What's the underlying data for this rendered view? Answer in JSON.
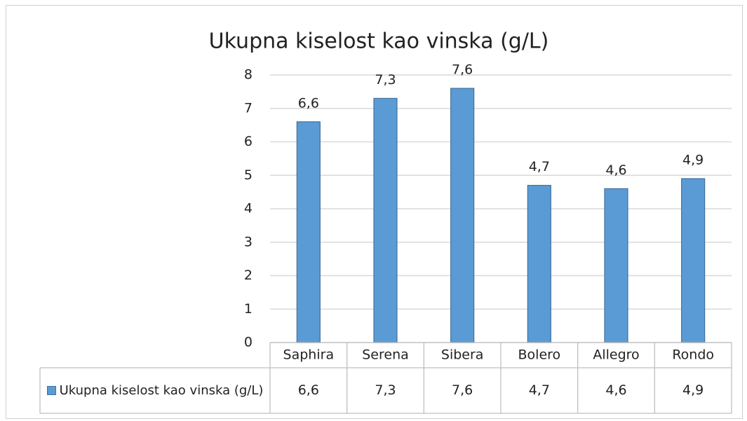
{
  "chart_data": {
    "type": "bar",
    "title": "Ukupna kiselost kao vinska (g/L)",
    "categories": [
      "Saphira",
      "Serena",
      "Sibera",
      "Bolero",
      "Allegro",
      "Rondo"
    ],
    "series": [
      {
        "name": "Ukupna kiselost kao vinska (g/L)",
        "color": "#5b9bd5",
        "values": [
          6.6,
          7.3,
          7.6,
          4.7,
          4.6,
          4.9
        ],
        "value_labels": [
          "6,6",
          "7,3",
          "7,6",
          "4,7",
          "4,6",
          "4,9"
        ]
      }
    ],
    "ylim": [
      0,
      8
    ],
    "yticks": [
      0,
      1,
      2,
      3,
      4,
      5,
      6,
      7,
      8
    ],
    "grid": true,
    "data_table": true
  }
}
